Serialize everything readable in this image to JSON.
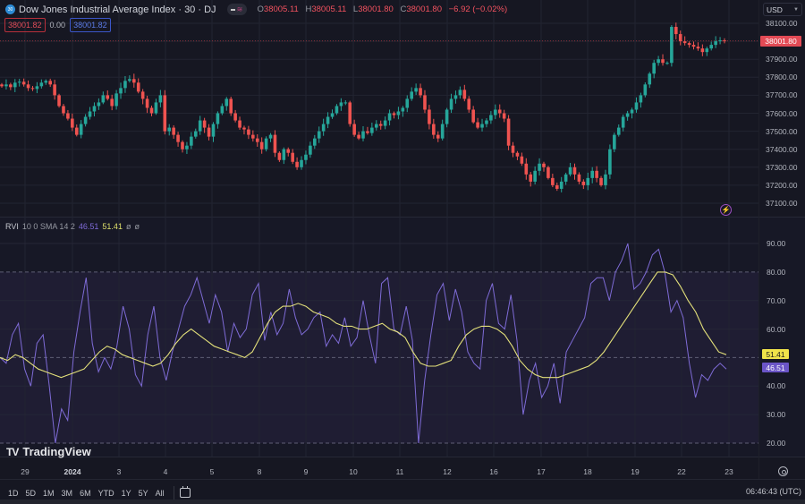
{
  "header": {
    "symbol_badge": "30",
    "title": "Dow Jones Industrial Average Index · 30 · DJ",
    "ohlc": {
      "open_label": "O",
      "open": "38005.11",
      "high_label": "H",
      "high": "38005.11",
      "low_label": "L",
      "low": "38001.80",
      "close_label": "C",
      "close": "38001.80",
      "change": "−6.92 (−0.02%)"
    },
    "sell_price": "38001.82",
    "spread": "0.00",
    "buy_price": "38001.82"
  },
  "currency_select": {
    "value": "USD"
  },
  "price_axis": {
    "labels": [
      "38100.00",
      "37900.00",
      "37800.00",
      "37700.00",
      "37600.00",
      "37500.00",
      "37400.00",
      "37300.00",
      "37200.00",
      "37100.00"
    ],
    "current_price": "38001.80"
  },
  "indicator": {
    "name": "RVI",
    "params": "10 0 SMA 14 2",
    "rvi_value": "46.51",
    "ma_value": "51.41",
    "extra1": "ø",
    "extra2": "ø",
    "axis_labels": [
      "90.00",
      "80.00",
      "70.00",
      "60.00",
      "40.00",
      "30.00",
      "20.00"
    ]
  },
  "brand": "TradingView",
  "time_axis": [
    "29",
    "2024",
    "3",
    "4",
    "5",
    "8",
    "9",
    "10",
    "11",
    "12",
    "16",
    "17",
    "18",
    "19",
    "22",
    "23"
  ],
  "toolbar": {
    "ranges": [
      "1D",
      "5D",
      "1M",
      "3M",
      "6M",
      "YTD",
      "1Y",
      "5Y",
      "All"
    ],
    "clock": "06:46:43 (UTC)"
  },
  "colors": {
    "up": "#26a69a",
    "down": "#ef5350",
    "rvi": "#7e6bd6",
    "rvi_ma": "#e3e07a",
    "background": "#161722"
  },
  "chart_data": [
    {
      "type": "candlestick",
      "title": "Dow Jones Industrial Average Index · 30 · DJ",
      "ylabel": "USD",
      "ylim": [
        37050,
        38150
      ],
      "x_ticks": [
        "29",
        "2024",
        "3",
        "4",
        "5",
        "8",
        "9",
        "10",
        "11",
        "12",
        "16",
        "17",
        "18",
        "19",
        "22",
        "23"
      ],
      "last": {
        "open": 38005.11,
        "high": 38005.11,
        "low": 38001.8,
        "close": 38001.8,
        "change": -6.92,
        "change_pct": -0.02
      },
      "closes": [
        37750,
        37760,
        37745,
        37770,
        37775,
        37760,
        37740,
        37735,
        37750,
        37770,
        37780,
        37760,
        37700,
        37640,
        37600,
        37570,
        37520,
        37480,
        37540,
        37580,
        37610,
        37640,
        37660,
        37700,
        37680,
        37640,
        37710,
        37740,
        37780,
        37790,
        37770,
        37720,
        37680,
        37630,
        37600,
        37660,
        37700,
        37500,
        37520,
        37480,
        37440,
        37400,
        37420,
        37470,
        37500,
        37560,
        37520,
        37470,
        37540,
        37600,
        37640,
        37680,
        37600,
        37560,
        37520,
        37510,
        37480,
        37460,
        37440,
        37400,
        37460,
        37480,
        37380,
        37340,
        37400,
        37380,
        37330,
        37300,
        37340,
        37370,
        37420,
        37460,
        37500,
        37540,
        37580,
        37600,
        37640,
        37660,
        37660,
        37540,
        37480,
        37460,
        37500,
        37490,
        37520,
        37540,
        37530,
        37560,
        37600,
        37590,
        37610,
        37630,
        37680,
        37720,
        37740,
        37700,
        37620,
        37540,
        37480,
        37460,
        37540,
        37620,
        37680,
        37700,
        37730,
        37680,
        37620,
        37550,
        37520,
        37540,
        37560,
        37590,
        37620,
        37600,
        37570,
        37420,
        37380,
        37360,
        37320,
        37260,
        37220,
        37280,
        37320,
        37300,
        37240,
        37200,
        37180,
        37220,
        37260,
        37300,
        37260,
        37220,
        37200,
        37240,
        37280,
        37240,
        37200,
        37260,
        37400,
        37480,
        37520,
        37580,
        37600,
        37620,
        37660,
        37700,
        37760,
        37820,
        37880,
        37900,
        37880,
        37880,
        38080,
        38040,
        38000,
        37990,
        37980,
        37970,
        37960,
        37940,
        37960,
        37980,
        38000,
        38005,
        38001.8
      ]
    },
    {
      "type": "line",
      "title": "RVI 10 0 SMA 14 2",
      "ylim": [
        20,
        92
      ],
      "bands": [
        20,
        50,
        80
      ],
      "series": [
        {
          "name": "RVI",
          "color": "#7e6bd6",
          "values": [
            50,
            48,
            58,
            62,
            46,
            40,
            55,
            58,
            40,
            20,
            32,
            28,
            52,
            66,
            78,
            55,
            45,
            50,
            46,
            54,
            68,
            60,
            44,
            40,
            58,
            68,
            50,
            42,
            52,
            60,
            68,
            72,
            78,
            70,
            62,
            72,
            66,
            52,
            62,
            57,
            60,
            72,
            76,
            56,
            66,
            58,
            62,
            74,
            64,
            58,
            60,
            64,
            66,
            54,
            58,
            55,
            64,
            54,
            57,
            70,
            58,
            48,
            76,
            78,
            60,
            58,
            68,
            56,
            20,
            42,
            58,
            72,
            76,
            63,
            74,
            66,
            52,
            48,
            46,
            70,
            76,
            62,
            60,
            72,
            56,
            30,
            42,
            48,
            36,
            40,
            48,
            34,
            52,
            56,
            60,
            64,
            76,
            78,
            78,
            70,
            80,
            84,
            90,
            74,
            76,
            80,
            86,
            88,
            80,
            66,
            70,
            64,
            48,
            36,
            44,
            42,
            46,
            48,
            46
          ]
        },
        {
          "name": "SMA",
          "color": "#e3e07a",
          "values": [
            50,
            49,
            51,
            50,
            48,
            46,
            45,
            44,
            43,
            44,
            45,
            46,
            49,
            52,
            54,
            53,
            51,
            50,
            49,
            48,
            47,
            48,
            51,
            55,
            58,
            60,
            58,
            56,
            54,
            53,
            52,
            51,
            50,
            52,
            57,
            62,
            66,
            68,
            68,
            69,
            68,
            66,
            65,
            64,
            62,
            61,
            61,
            60,
            60,
            61,
            62,
            60,
            59,
            57,
            52,
            48,
            47,
            47,
            48,
            49,
            54,
            58,
            60,
            61,
            61,
            60,
            58,
            54,
            49,
            46,
            44,
            43,
            43,
            43,
            44,
            45,
            46,
            47,
            49,
            52,
            56,
            60,
            64,
            68,
            72,
            76,
            80,
            80,
            79,
            75,
            70,
            66,
            60,
            56,
            52,
            51
          ]
        }
      ]
    }
  ]
}
